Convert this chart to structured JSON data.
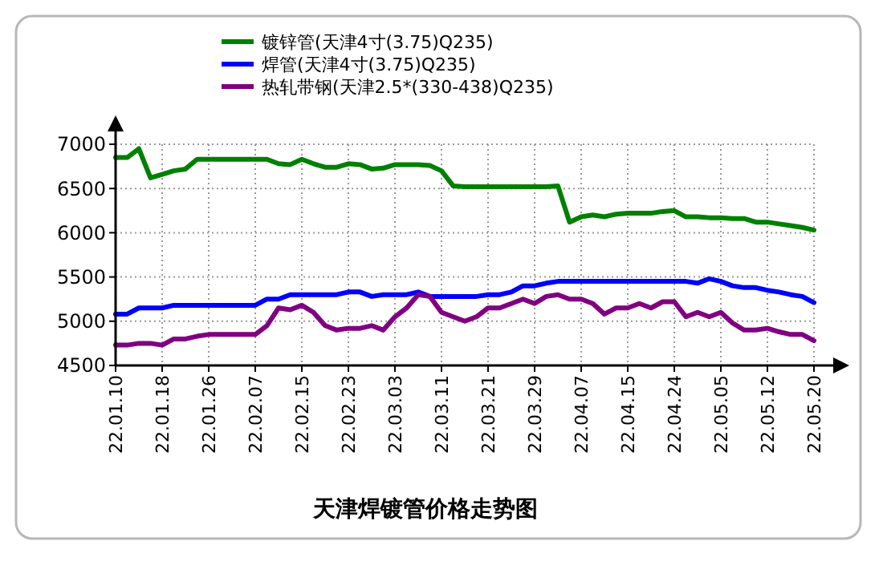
{
  "chart_data": {
    "type": "line",
    "title": "天津焊镀管价格走势图",
    "categories": [
      "22.01.10",
      null,
      null,
      null,
      "22.01.18",
      null,
      null,
      null,
      "22.01.26",
      null,
      null,
      null,
      "22.02.07",
      null,
      null,
      null,
      "22.02.15",
      null,
      null,
      null,
      "22.02.23",
      null,
      null,
      null,
      "22.03.03",
      null,
      null,
      null,
      "22.03.11",
      null,
      null,
      null,
      "22.03.21",
      null,
      null,
      null,
      "22.03.29",
      null,
      null,
      null,
      "22.04.07",
      null,
      null,
      null,
      "22.04.15",
      null,
      null,
      null,
      "22.04.24",
      null,
      null,
      null,
      "22.05.05",
      null,
      null,
      null,
      "22.05.12",
      null,
      null,
      null,
      "22.05.20"
    ],
    "series": [
      {
        "name": "镀锌管(天津4寸(3.75)Q235)",
        "color": "#008000",
        "values": [
          6850,
          6850,
          6950,
          6620,
          6660,
          6700,
          6720,
          6830,
          6830,
          6830,
          6830,
          6830,
          6830,
          6830,
          6780,
          6770,
          6830,
          6780,
          6740,
          6740,
          6780,
          6770,
          6720,
          6730,
          6770,
          6770,
          6770,
          6760,
          6700,
          6530,
          6520,
          6520,
          6520,
          6520,
          6520,
          6520,
          6520,
          6520,
          6530,
          6120,
          6180,
          6200,
          6180,
          6210,
          6220,
          6220,
          6220,
          6240,
          6250,
          6180,
          6180,
          6170,
          6170,
          6160,
          6160,
          6120,
          6120,
          6100,
          6080,
          6060,
          6030
        ]
      },
      {
        "name": "焊管(天津4寸(3.75)Q235)",
        "color": "#0000ff",
        "values": [
          5080,
          5080,
          5150,
          5150,
          5150,
          5180,
          5180,
          5180,
          5180,
          5180,
          5180,
          5180,
          5180,
          5250,
          5250,
          5300,
          5300,
          5300,
          5300,
          5300,
          5330,
          5330,
          5280,
          5300,
          5300,
          5300,
          5330,
          5280,
          5280,
          5280,
          5280,
          5280,
          5300,
          5300,
          5330,
          5400,
          5400,
          5430,
          5450,
          5450,
          5450,
          5450,
          5450,
          5450,
          5450,
          5450,
          5450,
          5450,
          5450,
          5450,
          5430,
          5480,
          5450,
          5400,
          5380,
          5380,
          5350,
          5330,
          5300,
          5280,
          5210
        ]
      },
      {
        "name": "热轧带钢(天津2.5*(330-438)Q235)",
        "color": "#800080",
        "values": [
          4730,
          4730,
          4750,
          4750,
          4730,
          4800,
          4800,
          4830,
          4850,
          4850,
          4850,
          4850,
          4850,
          4950,
          5150,
          5130,
          5180,
          5100,
          4950,
          4900,
          4920,
          4920,
          4950,
          4900,
          5050,
          5150,
          5300,
          5280,
          5100,
          5050,
          5000,
          5050,
          5150,
          5150,
          5200,
          5250,
          5200,
          5280,
          5300,
          5250,
          5250,
          5200,
          5080,
          5150,
          5150,
          5200,
          5150,
          5220,
          5220,
          5050,
          5100,
          5050,
          5100,
          4980,
          4900,
          4900,
          4920,
          4880,
          4850,
          4850,
          4780
        ]
      }
    ],
    "ylim": [
      4500,
      7000
    ],
    "yticks": [
      4500,
      5000,
      5500,
      6000,
      6500,
      7000
    ],
    "grid": true,
    "legend": "top",
    "line_style": "solid",
    "marker": "none"
  }
}
